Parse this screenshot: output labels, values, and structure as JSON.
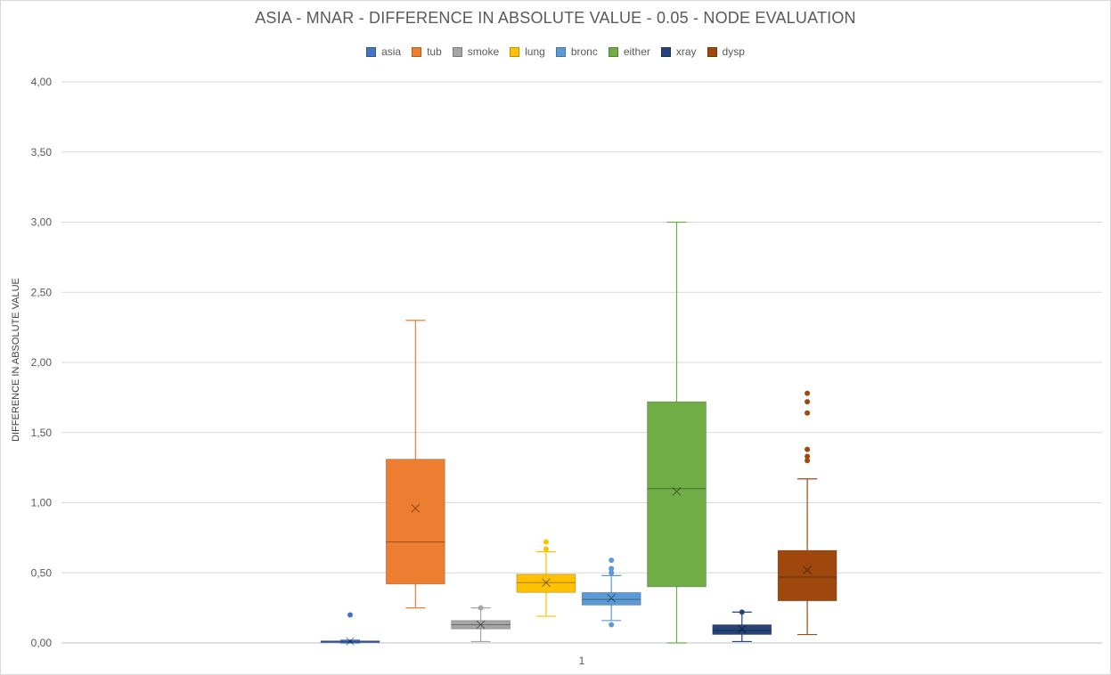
{
  "colors": {
    "asia": "#4472c4",
    "tub": "#ed7d31",
    "smoke": "#a5a5a5",
    "lung": "#ffc000",
    "bronc": "#5b9bd5",
    "either": "#70ad47",
    "xray": "#264478",
    "dysp": "#9e480e"
  },
  "chart_data": {
    "type": "box",
    "title": "ASIA - MNAR - DIFFERENCE IN ABSOLUTE VALUE - 0.05 - NODE EVALUATION",
    "xlabel": "",
    "ylabel": "DIFFERENCE IN ABSOLUTE VALUE",
    "ylim": [
      0,
      4
    ],
    "yticks": [
      "0,00",
      "0,50",
      "1,00",
      "1,50",
      "2,00",
      "2,50",
      "3,00",
      "3,50",
      "4,00"
    ],
    "categories": [
      "1"
    ],
    "grid": true,
    "legend_position": "top",
    "series": [
      {
        "name": "asia",
        "min": 0.0,
        "q1": 0.005,
        "median": 0.01,
        "q3": 0.015,
        "max": 0.02,
        "mean": 0.012,
        "outliers": [
          0.2
        ]
      },
      {
        "name": "tub",
        "min": 0.25,
        "q1": 0.42,
        "median": 0.72,
        "q3": 1.31,
        "max": 2.3,
        "mean": 0.96,
        "outliers": []
      },
      {
        "name": "smoke",
        "min": 0.01,
        "q1": 0.1,
        "median": 0.13,
        "q3": 0.16,
        "max": 0.25,
        "mean": 0.13,
        "outliers": [
          0.25
        ]
      },
      {
        "name": "lung",
        "min": 0.19,
        "q1": 0.36,
        "median": 0.43,
        "q3": 0.49,
        "max": 0.65,
        "mean": 0.43,
        "outliers": [
          0.67,
          0.72
        ]
      },
      {
        "name": "bronc",
        "min": 0.16,
        "q1": 0.27,
        "median": 0.31,
        "q3": 0.36,
        "max": 0.48,
        "mean": 0.32,
        "outliers": [
          0.13,
          0.5,
          0.53,
          0.59
        ]
      },
      {
        "name": "either",
        "min": 0.0,
        "q1": 0.4,
        "median": 1.1,
        "q3": 1.72,
        "max": 3.0,
        "mean": 1.08,
        "outliers": []
      },
      {
        "name": "xray",
        "min": 0.01,
        "q1": 0.06,
        "median": 0.09,
        "q3": 0.13,
        "max": 0.22,
        "mean": 0.1,
        "outliers": [
          0.22
        ]
      },
      {
        "name": "dysp",
        "min": 0.06,
        "q1": 0.3,
        "median": 0.47,
        "q3": 0.66,
        "max": 1.17,
        "mean": 0.52,
        "outliers": [
          1.3,
          1.33,
          1.38,
          1.64,
          1.72,
          1.78
        ]
      }
    ]
  }
}
